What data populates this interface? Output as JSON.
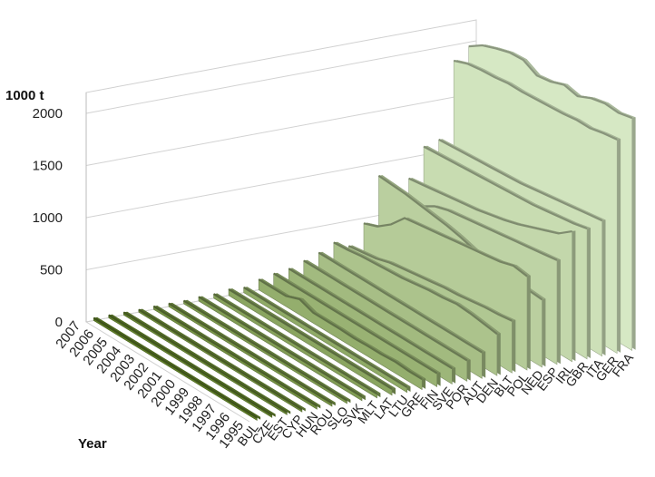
{
  "chart_data": {
    "type": "area",
    "style": "3d-ribbon",
    "ylabel": "1000 t",
    "xlabel": "Year",
    "ylim": [
      0,
      2000
    ],
    "yticks": [
      0,
      500,
      1000,
      1500,
      2000
    ],
    "years": [
      "1995",
      "1996",
      "1997",
      "1998",
      "1999",
      "2000",
      "2001",
      "2002",
      "2003",
      "2004",
      "2005",
      "2006",
      "2007"
    ],
    "series": [
      {
        "name": "BUL",
        "values": [
          25,
          25,
          25,
          25,
          25,
          25,
          25,
          25,
          25,
          25,
          25,
          25,
          25
        ]
      },
      {
        "name": "CZE",
        "values": [
          25,
          25,
          25,
          25,
          25,
          25,
          25,
          25,
          25,
          25,
          25,
          25,
          25
        ]
      },
      {
        "name": "EST",
        "values": [
          25,
          25,
          25,
          25,
          25,
          25,
          25,
          25,
          25,
          25,
          25,
          25,
          25
        ]
      },
      {
        "name": "CYP",
        "values": [
          25,
          25,
          25,
          25,
          25,
          25,
          25,
          25,
          25,
          25,
          25,
          25,
          25
        ]
      },
      {
        "name": "HUN",
        "values": [
          30,
          30,
          30,
          30,
          30,
          30,
          30,
          30,
          30,
          30,
          30,
          30,
          30
        ]
      },
      {
        "name": "ROU",
        "values": [
          30,
          30,
          30,
          30,
          30,
          30,
          30,
          30,
          30,
          30,
          30,
          30,
          30
        ]
      },
      {
        "name": "SLO",
        "values": [
          30,
          30,
          30,
          30,
          30,
          30,
          30,
          30,
          30,
          30,
          30,
          30,
          30
        ]
      },
      {
        "name": "SVK",
        "values": [
          40,
          40,
          40,
          40,
          40,
          40,
          40,
          40,
          40,
          40,
          40,
          40,
          40
        ]
      },
      {
        "name": "MLT",
        "values": [
          40,
          40,
          40,
          40,
          40,
          40,
          40,
          40,
          40,
          40,
          40,
          40,
          40
        ]
      },
      {
        "name": "LAT",
        "values": [
          60,
          60,
          60,
          60,
          60,
          60,
          60,
          60,
          60,
          60,
          60,
          60,
          60
        ]
      },
      {
        "name": "LTU",
        "values": [
          50,
          50,
          50,
          50,
          50,
          50,
          50,
          50,
          50,
          50,
          50,
          50,
          50
        ]
      },
      {
        "name": "GRE",
        "values": [
          100,
          100,
          110,
          100,
          100,
          95,
          100,
          100,
          100,
          150,
          100,
          100,
          100
        ]
      },
      {
        "name": "FIN",
        "values": [
          130,
          130,
          130,
          130,
          130,
          130,
          130,
          130,
          130,
          130,
          130,
          130,
          130
        ]
      },
      {
        "name": "SVE",
        "values": [
          150,
          150,
          150,
          150,
          150,
          150,
          150,
          150,
          150,
          150,
          150,
          150,
          150
        ]
      },
      {
        "name": "POR",
        "values": [
          200,
          200,
          200,
          200,
          200,
          200,
          200,
          200,
          200,
          200,
          200,
          200,
          200
        ]
      },
      {
        "name": "AUT",
        "values": [
          250,
          250,
          250,
          250,
          250,
          250,
          250,
          250,
          250,
          250,
          250,
          250,
          250
        ]
      },
      {
        "name": "DEN",
        "values": [
          400,
          420,
          440,
          450,
          430,
          420,
          400,
          380,
          370,
          360,
          350,
          330,
          320
        ]
      },
      {
        "name": "BLT",
        "values": [
          500,
          480,
          470,
          450,
          430,
          420,
          400,
          380,
          360,
          340,
          300,
          280,
          260
        ]
      },
      {
        "name": "POL",
        "values": [
          900,
          920,
          880,
          860,
          840,
          820,
          800,
          780,
          760,
          740,
          600,
          500,
          450
        ]
      },
      {
        "name": "NED",
        "values": [
          650,
          660,
          670,
          690,
          710,
          730,
          770,
          800,
          820,
          840,
          860,
          870,
          880
        ]
      },
      {
        "name": "ESP",
        "values": [
          1000,
          980,
          960,
          940,
          920,
          900,
          880,
          860,
          840,
          800,
          720,
          650,
          600
        ]
      },
      {
        "name": "IRL",
        "values": [
          1250,
          1150,
          1100,
          1050,
          1000,
          960,
          930,
          900,
          880,
          860,
          840,
          820,
          800
        ]
      },
      {
        "name": "GBR",
        "values": [
          1250,
          1220,
          1200,
          1180,
          1160,
          1150,
          1140,
          1130,
          1120,
          1110,
          1100,
          1090,
          1080
        ]
      },
      {
        "name": "ITA",
        "values": [
          1300,
          1280,
          1260,
          1240,
          1220,
          1200,
          1180,
          1170,
          1160,
          1150,
          1140,
          1130,
          1120
        ]
      },
      {
        "name": "GER",
        "values": [
          2050,
          2030,
          2000,
          2000,
          1980,
          1970,
          1960,
          1950,
          1950,
          1930,
          1920,
          1900,
          1850
        ]
      },
      {
        "name": "FRA",
        "values": [
          2230,
          2200,
          2210,
          2180,
          2120,
          2150,
          2100,
          2080,
          2150,
          2140,
          2100,
          2050,
          1960
        ]
      }
    ]
  }
}
